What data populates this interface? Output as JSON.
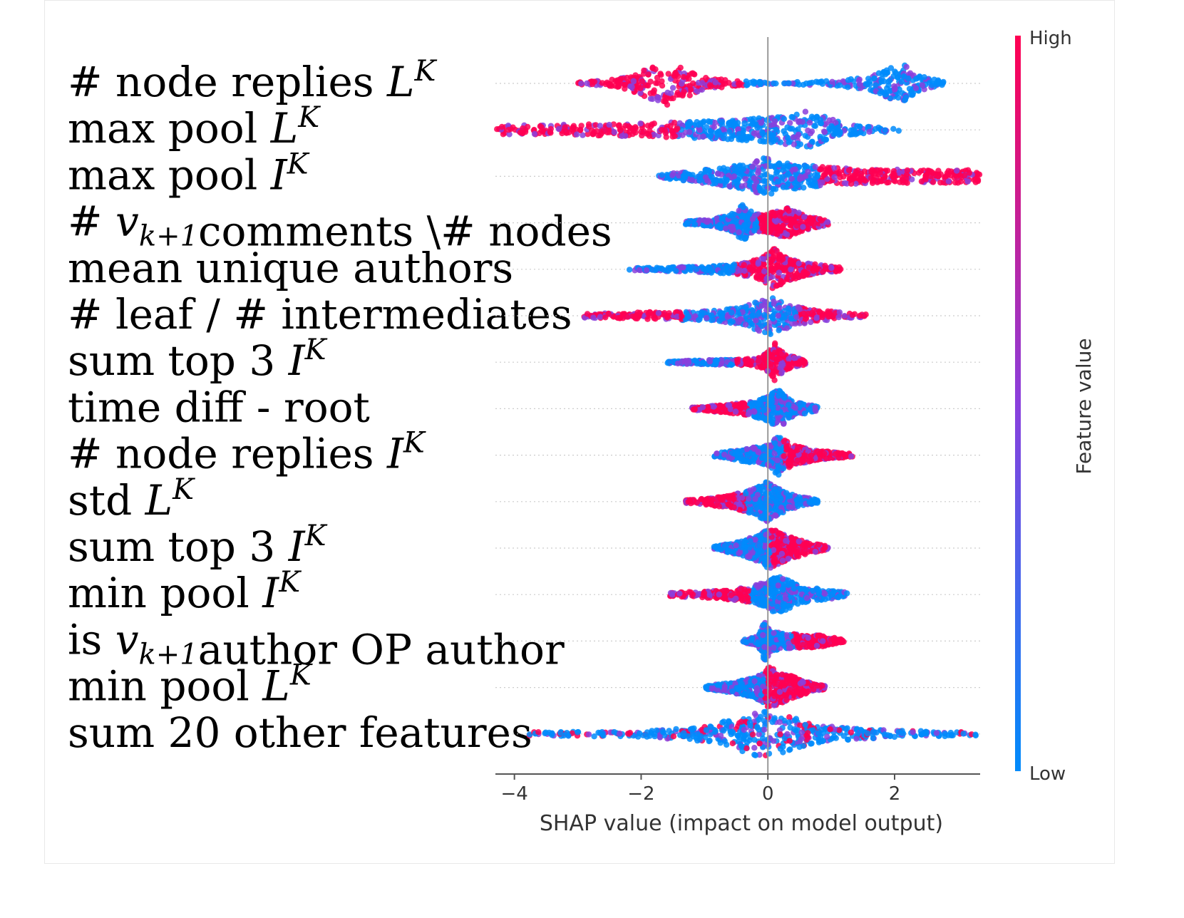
{
  "chart_data": {
    "type": "beeswarm",
    "xlabel": "SHAP value (impact on model output)",
    "xlim": [
      -4.3,
      3.35
    ],
    "xticks": [
      -4,
      -2,
      0,
      2
    ],
    "xtick_labels": [
      "−4",
      "−2",
      "0",
      "2"
    ],
    "colorbar": {
      "label": "Feature value",
      "high_label": "High",
      "low_label": "Low",
      "high_color": "#ff0052",
      "low_color": "#008bfb"
    },
    "features": [
      {
        "label": [
          [
            "# node replies ",
            ""
          ],
          [
            "L",
            "it"
          ],
          [
            "K",
            "sup"
          ]
        ],
        "min": -3.0,
        "max": 2.8,
        "high_side": "left",
        "density": [
          [
            -3.0,
            0.05
          ],
          [
            -2.6,
            0.12
          ],
          [
            -2.2,
            0.25
          ],
          [
            -1.9,
            0.6
          ],
          [
            -1.6,
            0.9
          ],
          [
            -1.3,
            0.6
          ],
          [
            -1.0,
            0.25
          ],
          [
            -0.6,
            0.12
          ],
          [
            -0.25,
            0.08
          ],
          [
            0.4,
            0.0
          ],
          [
            0.45,
            0.06
          ],
          [
            1.0,
            0.1
          ],
          [
            1.6,
            0.25
          ],
          [
            2.0,
            0.7
          ],
          [
            2.1,
            0.85
          ],
          [
            2.4,
            0.3
          ],
          [
            2.8,
            0.06
          ]
        ]
      },
      {
        "label": [
          [
            "max pool ",
            ""
          ],
          [
            "L",
            "it"
          ],
          [
            "K",
            "sup"
          ]
        ],
        "min": -4.3,
        "max": 2.1,
        "high_side": "left",
        "density": [
          [
            -4.3,
            0.18
          ],
          [
            -3.0,
            0.22
          ],
          [
            -2.0,
            0.28
          ],
          [
            -1.0,
            0.35
          ],
          [
            0.0,
            0.5
          ],
          [
            0.3,
            0.6
          ],
          [
            0.6,
            0.8
          ],
          [
            0.9,
            0.55
          ],
          [
            1.2,
            0.25
          ],
          [
            1.6,
            0.12
          ],
          [
            2.1,
            0.06
          ]
        ]
      },
      {
        "label": [
          [
            "max pool ",
            ""
          ],
          [
            "I",
            "it"
          ],
          [
            "K",
            "sup"
          ]
        ],
        "min": -1.75,
        "max": 3.35,
        "high_side": "right",
        "density": [
          [
            -1.75,
            0.06
          ],
          [
            -1.3,
            0.18
          ],
          [
            -0.8,
            0.35
          ],
          [
            -0.3,
            0.55
          ],
          [
            -0.05,
            0.8
          ],
          [
            0.3,
            0.55
          ],
          [
            1.0,
            0.35
          ],
          [
            2.0,
            0.28
          ],
          [
            3.35,
            0.26
          ]
        ]
      },
      {
        "label": [
          [
            "# ",
            ""
          ],
          [
            "v",
            "it"
          ],
          [
            "k+1",
            "sub"
          ],
          [
            "comments \\# nodes",
            ""
          ]
        ],
        "min": -1.3,
        "max": 0.95,
        "high_side": "right",
        "density": [
          [
            -1.3,
            0.06
          ],
          [
            -0.9,
            0.15
          ],
          [
            -0.6,
            0.3
          ],
          [
            -0.4,
            0.75
          ],
          [
            -0.2,
            0.35
          ],
          [
            0.0,
            0.4
          ],
          [
            0.3,
            0.65
          ],
          [
            0.55,
            0.35
          ],
          [
            0.95,
            0.08
          ]
        ]
      },
      {
        "label": [
          [
            "mean unique authors",
            ""
          ]
        ],
        "min": -2.2,
        "max": 1.15,
        "high_side": "right",
        "density": [
          [
            -2.2,
            0.05
          ],
          [
            -1.2,
            0.1
          ],
          [
            -0.5,
            0.2
          ],
          [
            -0.1,
            0.45
          ],
          [
            0.1,
            0.85
          ],
          [
            0.3,
            0.5
          ],
          [
            0.6,
            0.25
          ],
          [
            1.15,
            0.08
          ]
        ]
      },
      {
        "label": [
          [
            "# leaf / # intermediates",
            ""
          ]
        ],
        "min": -2.9,
        "max": 1.55,
        "high_side": "both",
        "density": [
          [
            -2.9,
            0.08
          ],
          [
            -2.0,
            0.14
          ],
          [
            -1.0,
            0.2
          ],
          [
            -0.4,
            0.35
          ],
          [
            0.0,
            0.8
          ],
          [
            0.2,
            0.6
          ],
          [
            0.6,
            0.3
          ],
          [
            1.1,
            0.15
          ],
          [
            1.55,
            0.06
          ]
        ]
      },
      {
        "label": [
          [
            "sum top 3 ",
            ""
          ],
          [
            "I",
            "it"
          ],
          [
            "K",
            "sup"
          ]
        ],
        "min": -1.6,
        "max": 0.6,
        "high_side": "right",
        "density": [
          [
            -1.6,
            0.05
          ],
          [
            -0.8,
            0.1
          ],
          [
            -0.2,
            0.15
          ],
          [
            0.0,
            0.4
          ],
          [
            0.1,
            0.85
          ],
          [
            0.25,
            0.35
          ],
          [
            0.6,
            0.08
          ]
        ]
      },
      {
        "label": [
          [
            "time diff - root",
            ""
          ]
        ],
        "min": -1.2,
        "max": 0.8,
        "high_side": "left",
        "density": [
          [
            -1.2,
            0.06
          ],
          [
            -0.7,
            0.15
          ],
          [
            -0.3,
            0.28
          ],
          [
            0.0,
            0.5
          ],
          [
            0.15,
            0.85
          ],
          [
            0.4,
            0.3
          ],
          [
            0.8,
            0.08
          ]
        ]
      },
      {
        "label": [
          [
            "# node replies ",
            ""
          ],
          [
            "I",
            "it"
          ],
          [
            "K",
            "sup"
          ]
        ],
        "min": -0.85,
        "max": 1.35,
        "high_side": "right",
        "density": [
          [
            -0.85,
            0.06
          ],
          [
            -0.4,
            0.25
          ],
          [
            0.0,
            0.4
          ],
          [
            0.15,
            0.85
          ],
          [
            0.4,
            0.4
          ],
          [
            0.8,
            0.2
          ],
          [
            1.35,
            0.06
          ]
        ]
      },
      {
        "label": [
          [
            "std ",
            ""
          ],
          [
            "L",
            "it"
          ],
          [
            "K",
            "sup"
          ]
        ],
        "min": -1.3,
        "max": 0.8,
        "high_side": "left",
        "density": [
          [
            -1.3,
            0.06
          ],
          [
            -1.1,
            0.1
          ],
          [
            -0.6,
            0.25
          ],
          [
            -0.2,
            0.55
          ],
          [
            0.0,
            0.85
          ],
          [
            0.3,
            0.35
          ],
          [
            0.8,
            0.06
          ]
        ]
      },
      {
        "label": [
          [
            "sum top 3 ",
            ""
          ],
          [
            "I",
            "it"
          ],
          [
            "K",
            "sup"
          ]
        ],
        "min": -0.85,
        "max": 0.95,
        "high_side": "right",
        "density": [
          [
            -0.85,
            0.06
          ],
          [
            -0.4,
            0.3
          ],
          [
            -0.1,
            0.6
          ],
          [
            0.0,
            0.9
          ],
          [
            0.25,
            0.55
          ],
          [
            0.6,
            0.25
          ],
          [
            0.95,
            0.08
          ]
        ]
      },
      {
        "label": [
          [
            "min pool ",
            ""
          ],
          [
            "I",
            "it"
          ],
          [
            "K",
            "sup"
          ]
        ],
        "min": -1.55,
        "max": 1.25,
        "high_side": "left",
        "density": [
          [
            -1.55,
            0.08
          ],
          [
            -0.8,
            0.15
          ],
          [
            -0.3,
            0.3
          ],
          [
            0.0,
            0.55
          ],
          [
            0.15,
            0.85
          ],
          [
            0.5,
            0.35
          ],
          [
            1.25,
            0.08
          ]
        ]
      },
      {
        "label": [
          [
            "is ",
            ""
          ],
          [
            "v",
            "it"
          ],
          [
            "k+1",
            "sub"
          ],
          [
            "author OP author",
            ""
          ]
        ],
        "min": -0.4,
        "max": 1.2,
        "high_side": "right",
        "density": [
          [
            -0.4,
            0.05
          ],
          [
            -0.15,
            0.2
          ],
          [
            -0.05,
            0.85
          ],
          [
            0.05,
            0.4
          ],
          [
            0.3,
            0.3
          ],
          [
            0.8,
            0.25
          ],
          [
            1.2,
            0.06
          ]
        ]
      },
      {
        "label": [
          [
            "min pool ",
            ""
          ],
          [
            "L",
            "it"
          ],
          [
            "K",
            "sup"
          ]
        ],
        "min": -1.0,
        "max": 0.9,
        "high_side": "right",
        "density": [
          [
            -1.0,
            0.06
          ],
          [
            -0.6,
            0.2
          ],
          [
            -0.2,
            0.4
          ],
          [
            0.0,
            0.85
          ],
          [
            0.3,
            0.55
          ],
          [
            0.6,
            0.25
          ],
          [
            0.9,
            0.07
          ]
        ]
      },
      {
        "label": [
          [
            "sum 20 other features",
            ""
          ]
        ],
        "min": -3.8,
        "max": 3.3,
        "high_side": "mixed",
        "density": [
          [
            -3.8,
            0.08
          ],
          [
            -2.0,
            0.12
          ],
          [
            -1.0,
            0.3
          ],
          [
            -0.5,
            0.7
          ],
          [
            -0.1,
            0.95
          ],
          [
            0.3,
            0.75
          ],
          [
            0.8,
            0.35
          ],
          [
            1.5,
            0.2
          ],
          [
            2.5,
            0.12
          ],
          [
            3.3,
            0.08
          ]
        ]
      }
    ]
  }
}
